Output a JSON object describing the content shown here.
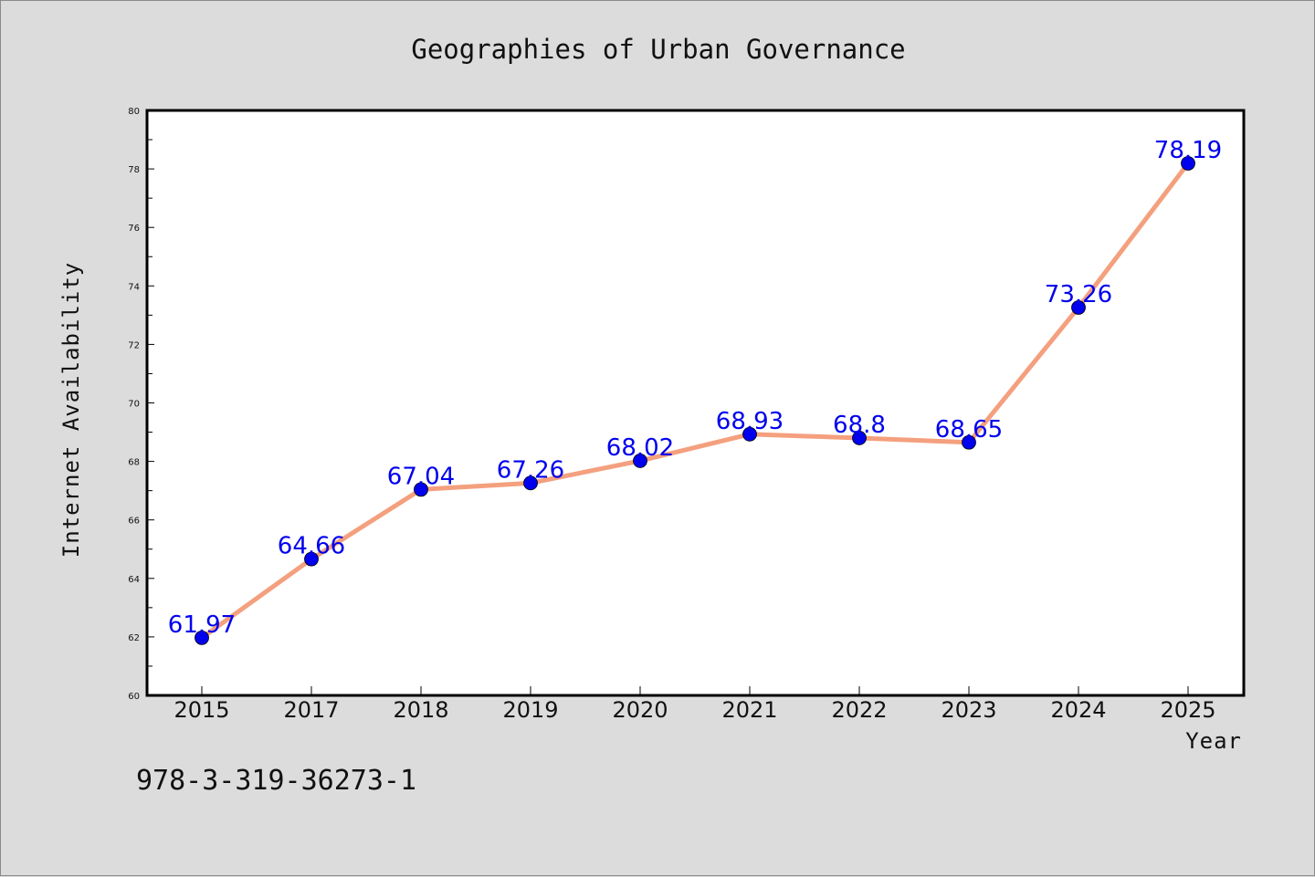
{
  "chart_data": {
    "type": "line",
    "title": "Geographies of Urban Governance",
    "xlabel": "Year",
    "ylabel": "Internet Availability",
    "categories": [
      "2015",
      "2017",
      "2018",
      "2019",
      "2020",
      "2021",
      "2022",
      "2023",
      "2024",
      "2025"
    ],
    "series": [
      {
        "values": [
          61.97,
          64.66,
          67.04,
          67.26,
          68.02,
          68.93,
          68.8,
          68.65,
          73.26,
          78.19
        ],
        "labels": [
          "61.97",
          "64.66",
          "67.04",
          "67.26",
          "68.02",
          "68.93",
          "68.8",
          "68.65",
          "73.26",
          "78.19"
        ],
        "line_color": "#f4a07e",
        "marker_color": "#0000ee"
      }
    ],
    "ylim": [
      60,
      80
    ],
    "yticks": [
      "60",
      "62",
      "64",
      "66",
      "68",
      "70",
      "72",
      "74",
      "76",
      "78",
      "80"
    ],
    "grid": false,
    "legend": "none"
  },
  "footnote": "978-3-319-36273-1",
  "colors": {
    "background": "#dcdcdc",
    "plot_background": "#ffffff",
    "line": "#f4a07e",
    "marker": "#0000ee",
    "data_label": "#0000ee"
  }
}
